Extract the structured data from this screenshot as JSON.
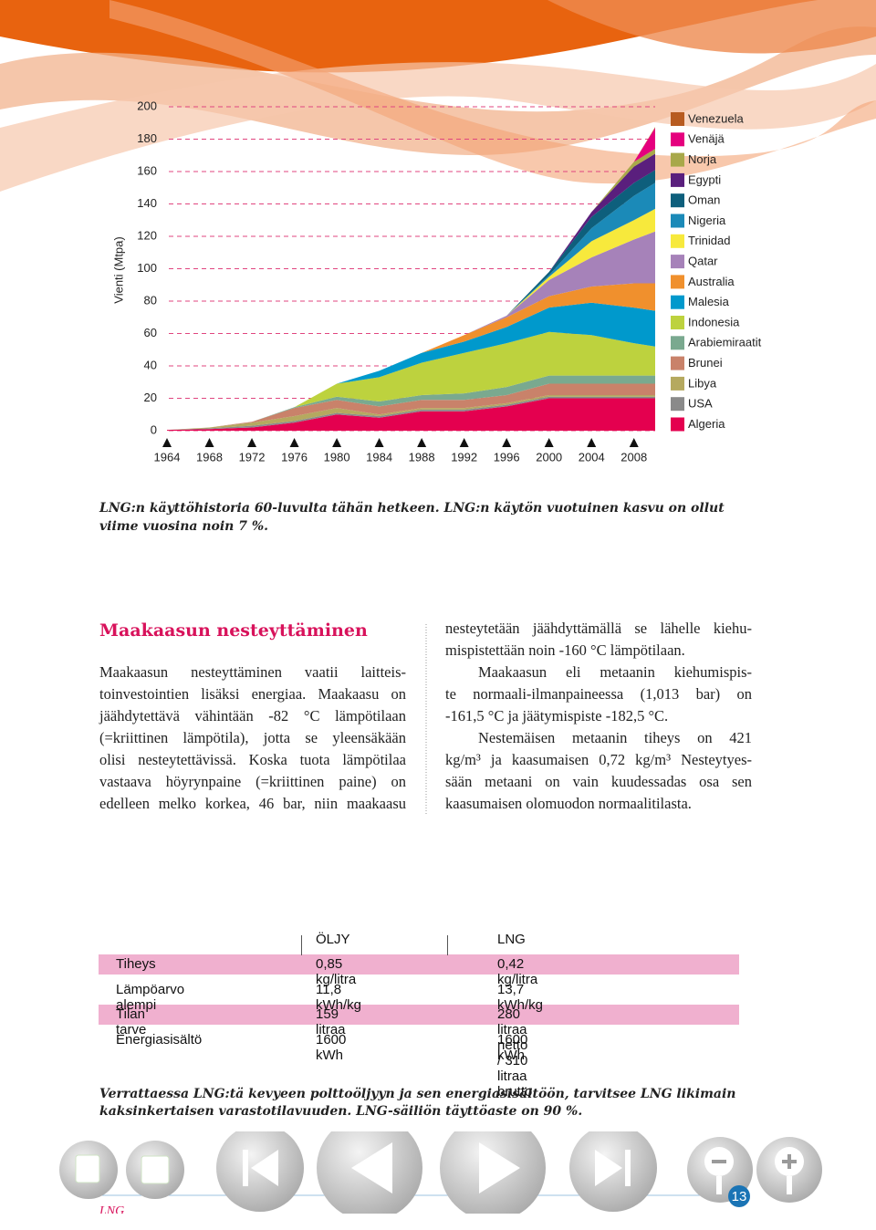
{
  "chart_data": {
    "type": "stacked-area",
    "y_label": "Vienti (Mtpa)",
    "x": [
      1964,
      1968,
      1972,
      1976,
      1980,
      1984,
      1988,
      1992,
      1996,
      2000,
      2004,
      2008,
      2010
    ],
    "xlim": [
      1964,
      2010
    ],
    "xticks": [
      1964,
      1968,
      1972,
      1976,
      1980,
      1984,
      1988,
      1992,
      1996,
      2000,
      2004,
      2008
    ],
    "ylim": [
      0,
      200
    ],
    "yticks": [
      0,
      20,
      40,
      60,
      80,
      100,
      120,
      140,
      160,
      180,
      200
    ],
    "grid": true,
    "series": [
      {
        "name": "Algeria",
        "color": "#e4004f",
        "values": [
          0.5,
          1,
          2,
          5,
          10,
          8,
          12,
          12,
          15,
          20,
          20,
          20,
          20
        ]
      },
      {
        "name": "USA",
        "color": "#8a8a8a",
        "values": [
          0,
          0.5,
          1,
          1,
          1,
          1,
          1,
          1,
          1,
          1,
          1,
          1,
          1
        ]
      },
      {
        "name": "Libya",
        "color": "#b5a95f",
        "values": [
          0,
          0.5,
          2,
          3,
          3,
          1,
          1,
          1,
          1,
          1,
          1,
          1,
          1
        ]
      },
      {
        "name": "Brunei",
        "color": "#c9826a",
        "values": [
          0,
          0,
          0.5,
          5,
          5,
          5,
          5,
          5,
          5,
          7,
          7,
          7,
          7
        ]
      },
      {
        "name": "Arabiemiraatit",
        "color": "#7aa98f",
        "values": [
          0,
          0,
          0,
          0.5,
          2,
          3,
          3,
          4,
          5,
          5,
          5,
          5,
          5
        ]
      },
      {
        "name": "Indonesia",
        "color": "#bdd23e",
        "values": [
          0,
          0,
          0,
          0,
          8,
          15,
          20,
          25,
          27,
          27,
          25,
          20,
          18
        ]
      },
      {
        "name": "Malesia",
        "color": "#0099cc",
        "values": [
          0,
          0,
          0,
          0,
          0,
          4,
          6,
          7,
          10,
          15,
          20,
          22,
          22
        ]
      },
      {
        "name": "Australia",
        "color": "#f0902d",
        "values": [
          0,
          0,
          0,
          0,
          0,
          0,
          0,
          4,
          6,
          7,
          10,
          15,
          17
        ]
      },
      {
        "name": "Qatar",
        "color": "#a682b9",
        "values": [
          0,
          0,
          0,
          0,
          0,
          0,
          0,
          0,
          1,
          10,
          18,
          27,
          32
        ]
      },
      {
        "name": "Trinidad",
        "color": "#f7e93c",
        "values": [
          0,
          0,
          0,
          0,
          0,
          0,
          0,
          0,
          0,
          2,
          10,
          12,
          14
        ]
      },
      {
        "name": "Nigeria",
        "color": "#1b8ab8",
        "values": [
          0,
          0,
          0,
          0,
          0,
          0,
          0,
          0,
          0,
          1,
          8,
          15,
          16
        ]
      },
      {
        "name": "Oman",
        "color": "#0e5f7c",
        "values": [
          0,
          0,
          0,
          0,
          0,
          0,
          0,
          0,
          0,
          2,
          7,
          8,
          8
        ]
      },
      {
        "name": "Egypti",
        "color": "#5a1f7d",
        "values": [
          0,
          0,
          0,
          0,
          0,
          0,
          0,
          0,
          0,
          0,
          3,
          10,
          10
        ]
      },
      {
        "name": "Norja",
        "color": "#a8a84a",
        "values": [
          0,
          0,
          0,
          0,
          0,
          0,
          0,
          0,
          0,
          0,
          0,
          3,
          3
        ]
      },
      {
        "name": "Venäjä",
        "color": "#e5007e",
        "values": [
          0,
          0,
          0,
          0,
          0,
          0,
          0,
          0,
          0,
          0,
          0,
          0,
          13
        ]
      },
      {
        "name": "Venezuela",
        "color": "#b75b20",
        "values": [
          0,
          0,
          0,
          0,
          0,
          0,
          0,
          0,
          0,
          0,
          0,
          0,
          0.5
        ]
      }
    ]
  },
  "caption": [
    "LNG:n käyttöhistoria 60-luvulta tähän hetkeen. LNG:n käytön vuotuinen kasvu on ollut",
    "viime vuosina noin 7 %."
  ],
  "article": {
    "heading": "Maakaasun nesteyttäminen",
    "column_1": [
      [
        "Maakaasun nesteyttäminen vaatii laitteis-",
        "toinvestointien lisäksi energiaa. Maakaasu on",
        "jäähdytettävä vähintään -82 °C lämpötilaan",
        "(=kriittinen lämpötila), jotta se yleensäkään",
        "olisi nesteytettävissä. Koska tuota lämpötilaa",
        "vastaava höyrynpaine (=kriittinen paine) on",
        "edelleen melko korkea, 46 bar, niin maakaasu"
      ]
    ],
    "column_2": [
      [
        "nesteytetään jäähdyttämällä se lähelle kiehu-",
        "mispistettään noin -160 °C lämpötilaan."
      ],
      [
        "Maakaasun eli metaanin kiehumispis-",
        "te normaali-ilmanpaineessa (1,013 bar) on",
        "-161,5 °C ja jäätymispiste -182,5 °C."
      ],
      [
        "Nestemäisen metaanin tiheys on 421",
        "kg/m³ ja kaasumaisen 0,72 kg/m³ Nesteytyes-",
        "sään metaani on vain kuudessadas osa sen",
        "kaasumaisen olomuodon normaalitilasta."
      ]
    ]
  },
  "table": {
    "header": [
      "ÖLJY",
      "LNG"
    ],
    "rows": [
      [
        "Tiheys",
        "0,85 kg/litra",
        "0,42 kg/litra"
      ],
      [
        "Lämpöarvo alempi",
        "11,8 kWh/kg",
        "13,7 kWh/kg"
      ],
      [
        "Tilan tarve",
        "159 litraa",
        "280 litraa netto / 310 litraa brutto"
      ],
      [
        "Energiasisältö",
        "1600 kWh",
        "1600 kWh"
      ]
    ]
  },
  "footnote": [
    "Verrattaessa LNG:tä kevyeen polttoöljyyn ja sen energiasisältöön, tarvitsee LNG likimain",
    "kaksinkertaisen varastotilavuuden.  LNG-säiliön täyttöaste on 90 %."
  ],
  "footer": {
    "label": "LNG",
    "page": 13
  }
}
